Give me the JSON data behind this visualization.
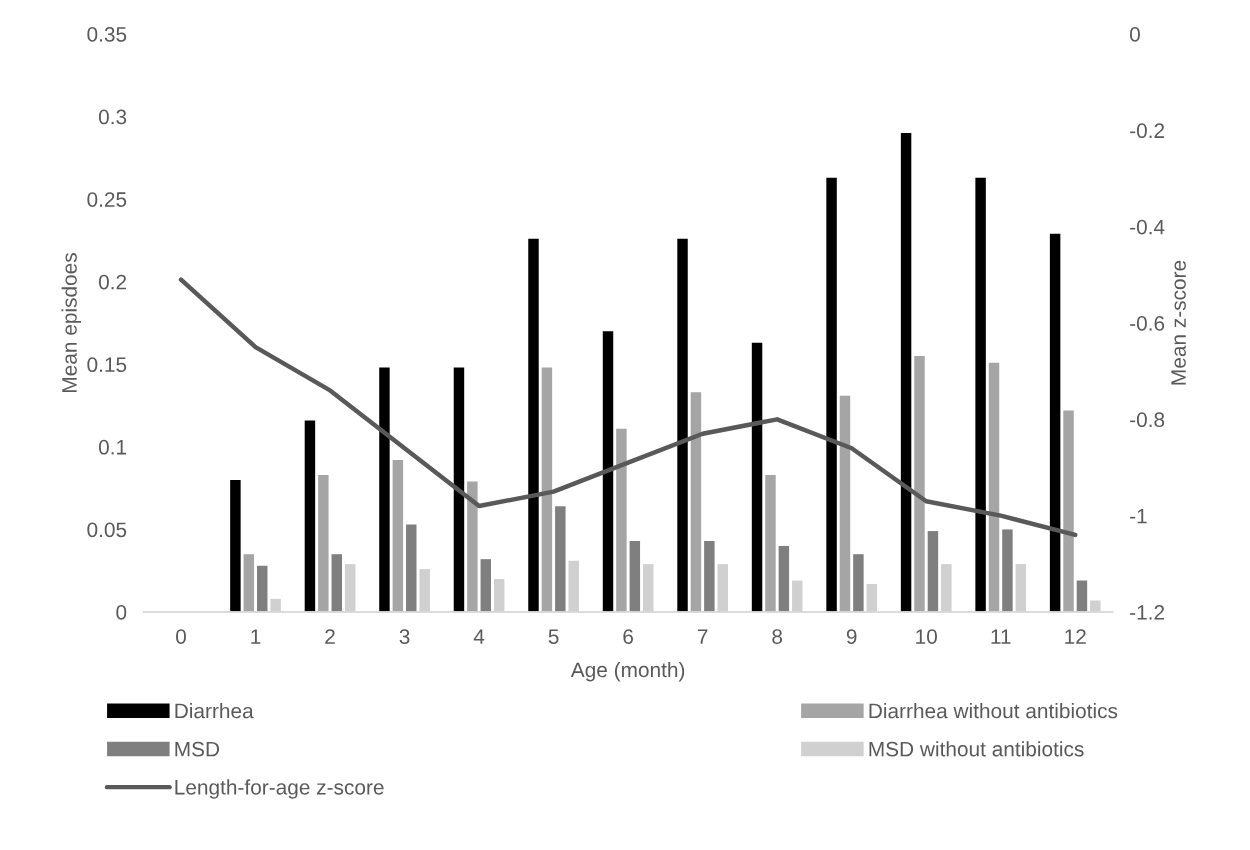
{
  "chart_data": {
    "type": "bar",
    "xlabel": "Age (month)",
    "ylabel": "Mean episdoes",
    "y2label": "Mean z-score",
    "categories": [
      "0",
      "1",
      "2",
      "3",
      "4",
      "5",
      "6",
      "7",
      "8",
      "9",
      "10",
      "11",
      "12"
    ],
    "series": [
      {
        "name": "Diarrhea",
        "color": "#000000",
        "values": [
          null,
          0.08,
          0.116,
          0.148,
          0.148,
          0.226,
          0.17,
          0.226,
          0.163,
          0.263,
          0.29,
          0.263,
          0.229
        ]
      },
      {
        "name": "Diarrhea without antibiotics",
        "color": "#a5a5a5",
        "values": [
          null,
          0.035,
          0.083,
          0.092,
          0.079,
          0.148,
          0.111,
          0.133,
          0.083,
          0.131,
          0.155,
          0.151,
          0.122
        ]
      },
      {
        "name": "MSD",
        "color": "#7f7f7f",
        "values": [
          null,
          0.028,
          0.035,
          0.053,
          0.032,
          0.064,
          0.043,
          0.043,
          0.04,
          0.035,
          0.049,
          0.05,
          0.019
        ]
      },
      {
        "name": "MSD without antibiotics",
        "color": "#d0d0d0",
        "values": [
          null,
          0.008,
          0.029,
          0.026,
          0.02,
          0.031,
          0.029,
          0.029,
          0.019,
          0.017,
          0.029,
          0.029,
          0.007
        ]
      },
      {
        "name": "Length-for-age z-score",
        "type": "line",
        "axis": "y2",
        "color": "#595959",
        "values": [
          -0.51,
          -0.65,
          -0.74,
          -0.86,
          -0.98,
          -0.95,
          -0.89,
          -0.83,
          -0.8,
          -0.86,
          -0.97,
          -1.0,
          -1.04
        ]
      }
    ],
    "ylim": [
      0,
      0.35
    ],
    "yticks": [
      0,
      0.05,
      0.1,
      0.15,
      0.2,
      0.25,
      0.3,
      0.35
    ],
    "y2lim": [
      -1.2,
      0
    ],
    "y2ticks": [
      -1.2,
      -1,
      -0.8,
      -0.6,
      -0.4,
      -0.2,
      0
    ],
    "grid": false,
    "legend": "bottom",
    "marker": "none",
    "line_style": "solid"
  }
}
